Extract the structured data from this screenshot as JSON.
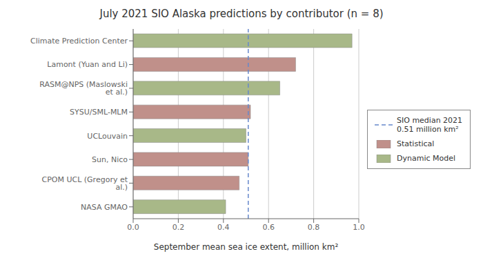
{
  "chart_data": {
    "type": "bar",
    "orientation": "horizontal",
    "title": "July 2021 SIO Alaska predictions by contributor (n = 8)",
    "xlabel": "September mean sea ice extent, million km²",
    "categories": [
      "NASA GMAO",
      "CPOM UCL (Gregory et al.)",
      "Sun, Nico",
      "UCLouvain",
      "SYSU/SML-MLM",
      "RASM@NPS (Maslowski et al.)",
      "Lamont (Yuan and Li)",
      "Climate Prediction Center"
    ],
    "series": [
      {
        "name": "Statistical",
        "color": "#c0908a",
        "values": [
          null,
          0.47,
          0.51,
          null,
          0.52,
          null,
          0.72,
          null
        ]
      },
      {
        "name": "Dynamic Model",
        "color": "#a8b888",
        "values": [
          0.41,
          null,
          null,
          0.5,
          null,
          0.65,
          null,
          0.97
        ]
      }
    ],
    "annotations": [
      {
        "x": 0.51,
        "label": "SIO median 2021\n0.51 million km²",
        "line_style": "dashed",
        "color": "#6688cc"
      }
    ],
    "xlim": [
      0.0,
      1.0
    ],
    "xticks": [
      {
        "value": 0.0,
        "label": "0.0"
      },
      0.2,
      0.4,
      0.6,
      0.8,
      {
        "value": 1.0,
        "label": "1.0"
      }
    ],
    "grid": true,
    "legend": "right"
  }
}
